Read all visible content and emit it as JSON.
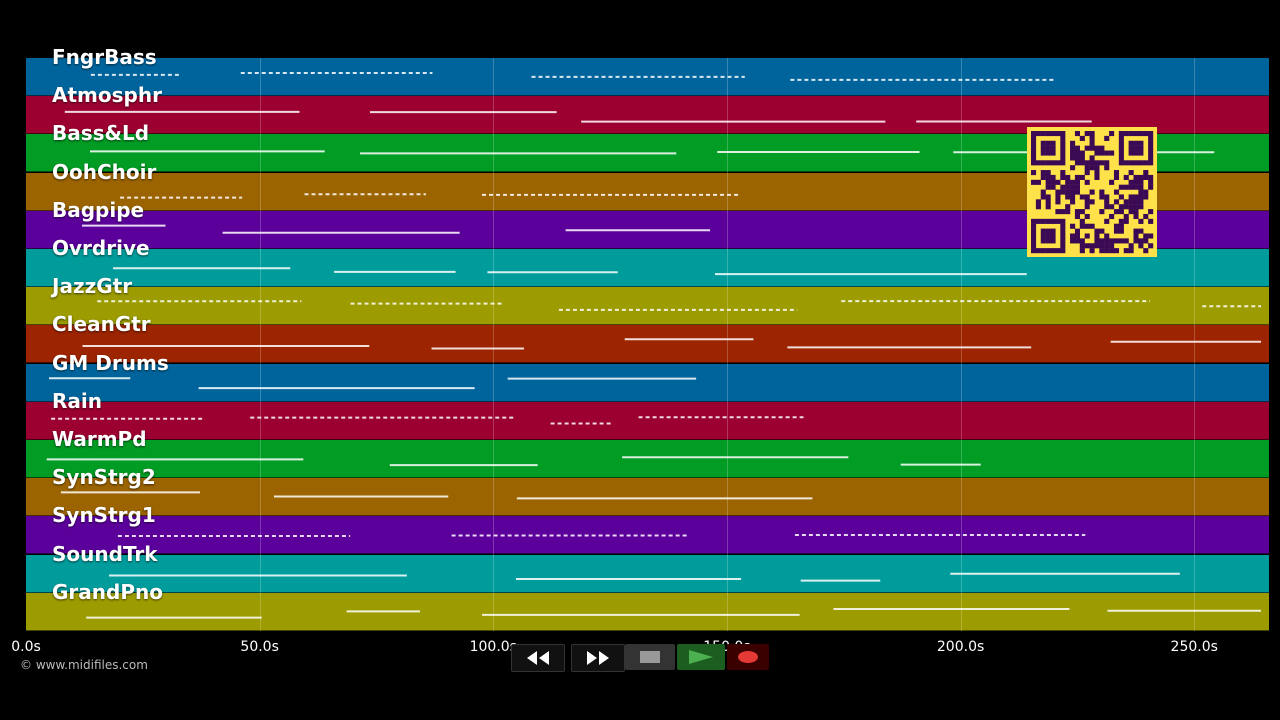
{
  "timeline": {
    "duration_s": 266,
    "ticks": [
      {
        "t": 0,
        "label": "0.0s"
      },
      {
        "t": 50,
        "label": "50.0s"
      },
      {
        "t": 100,
        "label": "100.0s"
      },
      {
        "t": 150,
        "label": "150.0s"
      },
      {
        "t": 200,
        "label": "200.0s"
      },
      {
        "t": 250,
        "label": "250.0s"
      }
    ]
  },
  "tracks": [
    {
      "label": "FngrBass",
      "color": "#00649c"
    },
    {
      "label": "Atmosphr",
      "color": "#9c0030"
    },
    {
      "label": "Bass&Ld",
      "color": "#009c24"
    },
    {
      "label": "OohChoir",
      "color": "#9c6400"
    },
    {
      "label": "Bagpipe",
      "color": "#5c009c"
    },
    {
      "label": "Ovrdrive",
      "color": "#009c9c"
    },
    {
      "label": "JazzGtr",
      "color": "#9c9c00"
    },
    {
      "label": "CleanGtr",
      "color": "#9c2400"
    },
    {
      "label": "GM Drums",
      "color": "#00649c"
    },
    {
      "label": "Rain",
      "color": "#9c0030"
    },
    {
      "label": "WarmPd",
      "color": "#009c24"
    },
    {
      "label": "SynStrg2",
      "color": "#9c6400"
    },
    {
      "label": "SynStrg1",
      "color": "#5c009c"
    },
    {
      "label": "SoundTrk",
      "color": "#009c9c"
    },
    {
      "label": "GrandPno",
      "color": "#9c9c00"
    }
  ],
  "copyright": "© www.midifiles.com",
  "controls": {
    "rewind": "rewind-icon",
    "fast_forward": "fast-forward-icon",
    "stop": "stop-icon",
    "play": "play-icon",
    "record": "record-icon"
  },
  "qr_code": {
    "color": "#ffe14a",
    "dark": "#3a0a55"
  }
}
